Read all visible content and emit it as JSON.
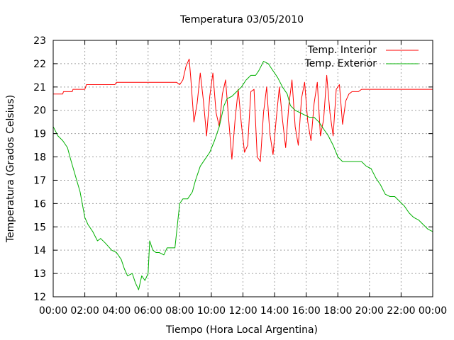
{
  "chart_data": {
    "type": "line",
    "title": "Temperatura 03/05/2010",
    "xlabel": "Tiempo (Hora Local Argentina)",
    "ylabel": "Temperatura (Grados Celsius)",
    "xlim": [
      0,
      24
    ],
    "ylim": [
      12,
      23
    ],
    "grid": true,
    "legend_position": "top-right",
    "x_tick_labels": [
      "00:00",
      "02:00",
      "04:00",
      "06:00",
      "08:00",
      "10:00",
      "12:00",
      "14:00",
      "16:00",
      "18:00",
      "20:00",
      "22:00",
      "00:00"
    ],
    "y_tick_labels": [
      "12",
      "13",
      "14",
      "15",
      "16",
      "17",
      "18",
      "19",
      "20",
      "21",
      "22",
      "23"
    ],
    "series": [
      {
        "name": "Temp. Interior",
        "color": "#ff0000",
        "x": [
          0,
          0.6,
          0.65,
          1.2,
          1.25,
          2.0,
          2.1,
          3.9,
          4.0,
          7.8,
          8.0,
          8.2,
          8.4,
          8.6,
          8.7,
          8.9,
          9.1,
          9.3,
          9.5,
          9.7,
          9.9,
          10.1,
          10.3,
          10.5,
          10.7,
          10.9,
          11.1,
          11.3,
          11.5,
          11.7,
          11.9,
          12.1,
          12.3,
          12.5,
          12.7,
          12.9,
          13.1,
          13.3,
          13.5,
          13.7,
          13.9,
          14.1,
          14.3,
          14.5,
          14.7,
          14.9,
          15.1,
          15.3,
          15.5,
          15.7,
          15.9,
          16.1,
          16.3,
          16.5,
          16.7,
          16.9,
          17.1,
          17.3,
          17.5,
          17.7,
          17.9,
          18.1,
          18.3,
          18.5,
          18.7,
          18.9,
          19.1,
          19.3,
          19.5,
          19.7,
          19.9,
          20.1,
          20.3,
          20.5,
          20.7,
          21.2,
          21.4,
          24
        ],
        "y": [
          20.7,
          20.7,
          20.8,
          20.8,
          20.9,
          20.9,
          21.1,
          21.1,
          21.2,
          21.2,
          21.1,
          21.3,
          21.9,
          22.2,
          21.4,
          19.5,
          20.3,
          21.6,
          20.4,
          18.9,
          20.6,
          21.6,
          19.9,
          19.3,
          20.7,
          21.3,
          19.6,
          17.9,
          19.6,
          20.9,
          19.4,
          18.2,
          18.5,
          20.8,
          20.9,
          18.0,
          17.8,
          19.9,
          21.0,
          19.0,
          18.1,
          19.6,
          21.0,
          19.6,
          18.4,
          20.2,
          21.3,
          19.3,
          18.5,
          20.5,
          21.2,
          19.5,
          18.7,
          20.3,
          21.2,
          18.9,
          19.6,
          21.5,
          19.9,
          18.9,
          20.9,
          21.1,
          19.4,
          20.4,
          20.7,
          20.8,
          20.8,
          20.8,
          20.9,
          20.9,
          20.9,
          20.9,
          20.9,
          20.9,
          20.9,
          20.9,
          20.9,
          20.9
        ]
      },
      {
        "name": "Temp. Exterior",
        "color": "#00b000",
        "x": [
          0,
          0.3,
          0.6,
          0.9,
          1.1,
          1.4,
          1.7,
          2.0,
          2.2,
          2.5,
          2.8,
          3.0,
          3.3,
          3.7,
          4.0,
          4.3,
          4.5,
          4.7,
          5.0,
          5.2,
          5.4,
          5.6,
          5.8,
          6.0,
          6.1,
          6.3,
          6.5,
          6.7,
          7.0,
          7.2,
          7.5,
          7.7,
          8.0,
          8.2,
          8.5,
          8.8,
          9.0,
          9.3,
          9.6,
          9.9,
          10.2,
          10.5,
          10.8,
          11.0,
          11.3,
          11.6,
          11.9,
          12.2,
          12.5,
          12.8,
          13.0,
          13.3,
          13.6,
          13.8,
          14.0,
          14.2,
          14.5,
          14.8,
          15.0,
          15.3,
          15.6,
          15.9,
          16.2,
          16.5,
          16.8,
          17.1,
          17.4,
          17.7,
          18.0,
          18.3,
          18.6,
          18.9,
          19.2,
          19.5,
          19.8,
          20.1,
          20.4,
          20.7,
          21.0,
          21.3,
          21.6,
          21.9,
          22.2,
          22.5,
          22.8,
          23.1,
          23.4,
          23.7,
          24.0
        ],
        "y": [
          19.3,
          18.9,
          18.7,
          18.4,
          17.9,
          17.2,
          16.5,
          15.4,
          15.1,
          14.8,
          14.4,
          14.5,
          14.3,
          14.0,
          13.9,
          13.6,
          13.2,
          12.9,
          13.0,
          12.6,
          12.3,
          12.9,
          12.7,
          13.0,
          14.4,
          14.0,
          13.9,
          13.9,
          13.8,
          14.1,
          14.1,
          14.1,
          16.0,
          16.2,
          16.2,
          16.5,
          17.0,
          17.6,
          17.9,
          18.2,
          18.7,
          19.3,
          20.2,
          20.5,
          20.6,
          20.8,
          21.0,
          21.3,
          21.5,
          21.5,
          21.7,
          22.1,
          22.0,
          21.8,
          21.6,
          21.4,
          21.0,
          20.7,
          20.2,
          20.0,
          19.9,
          19.8,
          19.7,
          19.7,
          19.5,
          19.2,
          18.9,
          18.5,
          18.0,
          17.8,
          17.8,
          17.8,
          17.8,
          17.8,
          17.6,
          17.5,
          17.1,
          16.8,
          16.4,
          16.3,
          16.3,
          16.1,
          15.9,
          15.6,
          15.4,
          15.3,
          15.1,
          14.9,
          14.8
        ]
      }
    ]
  }
}
